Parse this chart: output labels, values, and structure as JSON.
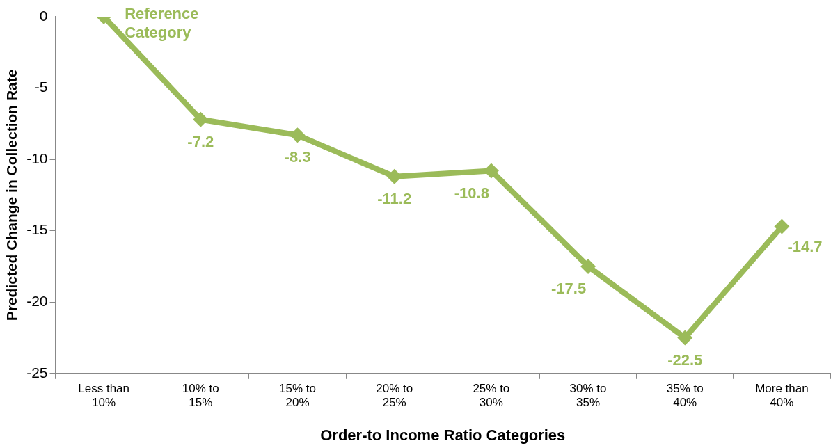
{
  "chart_data": {
    "type": "line",
    "xlabel": "Order-to Income Ratio Categories",
    "ylabel": "Predicted Change in Collection Rate",
    "categories": [
      "Less than\n10%",
      "10% to\n15%",
      "15% to\n20%",
      "20% to\n25%",
      "25% to\n30%",
      "30% to\n35%",
      "35% to\n40%",
      "More than\n40%"
    ],
    "series": [
      {
        "color": "#9bbb59",
        "values": [
          0,
          -7.2,
          -8.3,
          -11.2,
          -10.8,
          -17.5,
          -22.5,
          -14.7
        ],
        "value_labels": [
          null,
          "-7.2",
          "-8.3",
          "-11.2",
          "-10.8",
          "-17.5",
          "-22.5",
          "-14.7"
        ]
      }
    ],
    "ylim": [
      -25,
      0
    ],
    "yticks": [
      -25,
      -20,
      -15,
      -10,
      -5,
      0
    ],
    "grid": false,
    "legend": false,
    "marker": "diamond",
    "line_style": "solid",
    "annotations": [
      {
        "text": "Reference\nCategory",
        "x": "Less than\n10%",
        "y": 0
      }
    ]
  }
}
